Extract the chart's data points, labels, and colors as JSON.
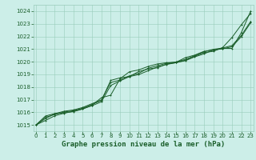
{
  "background_color": "#cceee8",
  "plot_bg_color": "#cceee8",
  "grid_color": "#99ccbb",
  "line_color": "#1a5e2a",
  "marker_color": "#1a5e2a",
  "xlabel": "Graphe pression niveau de la mer (hPa)",
  "xlabel_color": "#1a5e2a",
  "tick_color": "#1a5e2a",
  "ylim": [
    1014.5,
    1024.5
  ],
  "xlim": [
    -0.3,
    23.3
  ],
  "yticks": [
    1015,
    1016,
    1017,
    1018,
    1019,
    1020,
    1021,
    1022,
    1023,
    1024
  ],
  "xticks": [
    0,
    1,
    2,
    3,
    4,
    5,
    6,
    7,
    8,
    9,
    10,
    11,
    12,
    13,
    14,
    15,
    16,
    17,
    18,
    19,
    20,
    21,
    22,
    23
  ],
  "line1": [
    1015.0,
    1015.7,
    1015.9,
    1015.95,
    1016.05,
    1016.25,
    1016.55,
    1017.15,
    1017.35,
    1018.65,
    1019.2,
    1019.35,
    1019.62,
    1019.82,
    1019.92,
    1019.95,
    1020.32,
    1020.52,
    1020.82,
    1020.92,
    1021.05,
    1021.05,
    1022.3,
    1024.0
  ],
  "line2": [
    1015.0,
    1015.6,
    1015.82,
    1016.02,
    1016.12,
    1016.32,
    1016.62,
    1016.92,
    1018.52,
    1018.72,
    1018.82,
    1019.22,
    1019.42,
    1019.52,
    1019.82,
    1019.92,
    1020.12,
    1020.42,
    1020.72,
    1020.82,
    1021.12,
    1021.92,
    1022.92,
    1023.82
  ],
  "line3": [
    1015.0,
    1015.5,
    1015.88,
    1016.08,
    1016.18,
    1016.38,
    1016.68,
    1016.98,
    1018.35,
    1018.55,
    1018.88,
    1019.08,
    1019.48,
    1019.68,
    1019.88,
    1019.98,
    1020.18,
    1020.48,
    1020.78,
    1020.98,
    1021.08,
    1021.28,
    1022.08,
    1023.18
  ],
  "line4": [
    1015.0,
    1015.35,
    1015.72,
    1015.92,
    1016.08,
    1016.28,
    1016.52,
    1016.82,
    1018.12,
    1018.48,
    1018.82,
    1018.98,
    1019.28,
    1019.58,
    1019.78,
    1019.92,
    1020.08,
    1020.38,
    1020.62,
    1020.92,
    1021.02,
    1021.18,
    1021.98,
    1023.08
  ],
  "tick_fontsize": 5.0,
  "xlabel_fontsize": 6.5,
  "marker_size": 1.5,
  "line_width": 0.7
}
